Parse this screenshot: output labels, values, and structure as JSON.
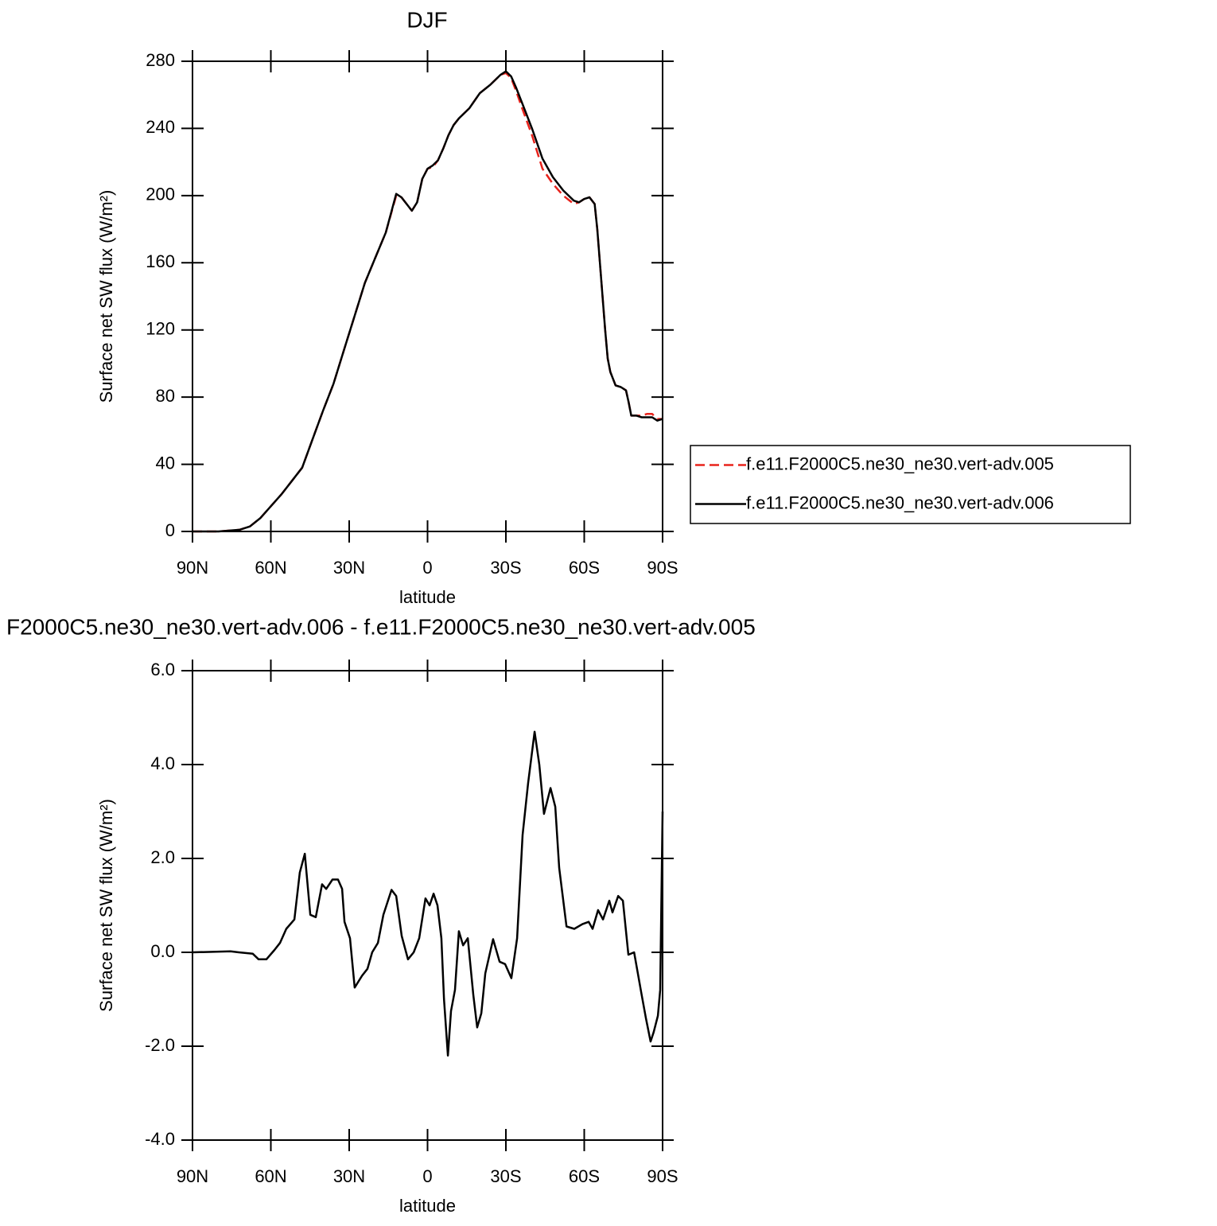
{
  "chart_data": [
    {
      "type": "line",
      "title": "DJF",
      "xlabel": "latitude",
      "ylabel": "Surface net SW flux (W/m²)",
      "xlim": [
        90,
        -90
      ],
      "xticks": [
        {
          "value": 90,
          "label": "90N"
        },
        {
          "value": 60,
          "label": "60N"
        },
        {
          "value": 30,
          "label": "30N"
        },
        0,
        {
          "value": -30,
          "label": "30S"
        },
        {
          "value": -60,
          "label": "60S"
        },
        {
          "value": -90,
          "label": "90S"
        }
      ],
      "ylim": [
        0,
        280
      ],
      "yticks": [
        0,
        40,
        80,
        120,
        160,
        200,
        240,
        280
      ],
      "legend": "outside-right",
      "x": [
        90,
        80,
        72,
        68,
        64,
        60,
        56,
        52,
        48,
        44,
        40,
        36,
        32,
        28,
        24,
        20,
        16,
        12,
        10,
        8,
        6,
        4,
        2,
        0,
        -2,
        -4,
        -6,
        -8,
        -10,
        -12,
        -16,
        -20,
        -24,
        -28,
        -30,
        -32,
        -34,
        -36,
        -40,
        -44,
        -48,
        -52,
        -56,
        -58,
        -60,
        -62,
        -64,
        -65,
        -66,
        -67,
        -68,
        -69,
        -70,
        -72,
        -74,
        -76,
        -77,
        -78,
        -80,
        -82,
        -84,
        -86,
        -88,
        -90
      ],
      "series": [
        {
          "name": "f.e11.F2000C5.ne30_ne30.vert-adv.005",
          "color": "#e8231c",
          "dash": true,
          "values": [
            0,
            0,
            1,
            3,
            8,
            15,
            22,
            30,
            38,
            55,
            72,
            88,
            108,
            128,
            148,
            163,
            178,
            200,
            199,
            195,
            191,
            196,
            210,
            216,
            217,
            221,
            228,
            236,
            242,
            246,
            252,
            261,
            266,
            272,
            273,
            270,
            262,
            253,
            236,
            216,
            207,
            200,
            195,
            196,
            198,
            199,
            195,
            180,
            160,
            140,
            120,
            103,
            95,
            87,
            86,
            84,
            77,
            69,
            69,
            69,
            70,
            70,
            67,
            67
          ]
        },
        {
          "name": "f.e11.F2000C5.ne30_ne30.vert-adv.006",
          "color": "#000000",
          "dash": false,
          "values": [
            0,
            0,
            1,
            3,
            8,
            15,
            22,
            30,
            38,
            55,
            72,
            88,
            108,
            128,
            148,
            163,
            178,
            201,
            199,
            195,
            191,
            196,
            210,
            216,
            218,
            221,
            228,
            236,
            242,
            246,
            252,
            261,
            266,
            272,
            274,
            271,
            264,
            256,
            240,
            222,
            211,
            203,
            197,
            196,
            198,
            199,
            195,
            180,
            160,
            140,
            120,
            103,
            95,
            87,
            86,
            84,
            77,
            69,
            69,
            68,
            68,
            68,
            66,
            67
          ]
        }
      ]
    },
    {
      "type": "line",
      "title": "F2000C5.ne30_ne30.vert-adv.006 - f.e11.F2000C5.ne30_ne30.vert-adv.005",
      "xlabel": "latitude",
      "ylabel": "Surface net SW flux (W/m²)",
      "xlim": [
        90,
        -90
      ],
      "xticks": [
        {
          "value": 90,
          "label": "90N"
        },
        {
          "value": 60,
          "label": "60N"
        },
        {
          "value": 30,
          "label": "30N"
        },
        0,
        {
          "value": -30,
          "label": "30S"
        },
        {
          "value": -60,
          "label": "60S"
        },
        {
          "value": -90,
          "label": "90S"
        }
      ],
      "ylim": [
        -4,
        6
      ],
      "yticks": [
        {
          "value": -4,
          "label": "-4.0"
        },
        {
          "value": -2,
          "label": "-2.0"
        },
        {
          "value": 0,
          "label": "0.0"
        },
        {
          "value": 2,
          "label": "2.0"
        },
        {
          "value": 4,
          "label": "4.0"
        },
        {
          "value": 6,
          "label": "6.0"
        }
      ],
      "x": [
        90,
        75.4,
        72.3,
        66.9,
        64.7,
        61.7,
        58.6,
        56.5,
        54.1,
        51,
        48.9,
        47,
        44.9,
        42.8,
        40.4,
        38.8,
        36.4,
        34.3,
        32.7,
        31.8,
        29.7,
        27.9,
        25.1,
        23,
        21.2,
        19,
        16.9,
        13.8,
        12,
        9.9,
        7.5,
        5.3,
        3.2,
        0.8,
        -0.8,
        -2.3,
        -3.8,
        -5.3,
        -6.3,
        -7.8,
        -9,
        -10.5,
        -12,
        -13.6,
        -15.4,
        -17.5,
        -19,
        -20.6,
        -22.1,
        -25.1,
        -27.6,
        -29.7,
        -32.1,
        -34.3,
        -36.4,
        -38.5,
        -41,
        -42.8,
        -44.6,
        -47.1,
        -48.9,
        -50.4,
        -53.2,
        -56.2,
        -59.3,
        -61.7,
        -63.2,
        -65.3,
        -67.2,
        -69.6,
        -70.8,
        -73,
        -74.8,
        -76.9,
        -79.1,
        -81.8,
        -83.6,
        -85.4,
        -86.6,
        -88.2,
        -89.1,
        -90
      ],
      "color": "#000000",
      "values": [
        0,
        0.02,
        0,
        -0.03,
        -0.15,
        -0.15,
        0.05,
        0.2,
        0.5,
        0.7,
        1.7,
        2.1,
        0.8,
        0.75,
        1.45,
        1.35,
        1.55,
        1.55,
        1.35,
        0.65,
        0.3,
        -0.75,
        -0.5,
        -0.35,
        0,
        0.2,
        0.8,
        1.33,
        1.2,
        0.35,
        -0.15,
        0,
        0.3,
        1.15,
        1,
        1.25,
        1,
        0.3,
        -1,
        -2.2,
        -1.25,
        -0.8,
        0.45,
        0.15,
        0.3,
        -0.9,
        -1.6,
        -1.3,
        -0.45,
        0.28,
        -0.2,
        -0.25,
        -0.55,
        0.3,
        2.5,
        3.6,
        4.7,
        4,
        2.95,
        3.5,
        3.1,
        1.8,
        0.55,
        0.5,
        0.6,
        0.65,
        0.5,
        0.9,
        0.7,
        1.1,
        0.85,
        1.2,
        1.1,
        -0.05,
        0,
        -0.85,
        -1.4,
        -1.9,
        -1.7,
        -1.35,
        -0.8,
        3
      ]
    }
  ]
}
